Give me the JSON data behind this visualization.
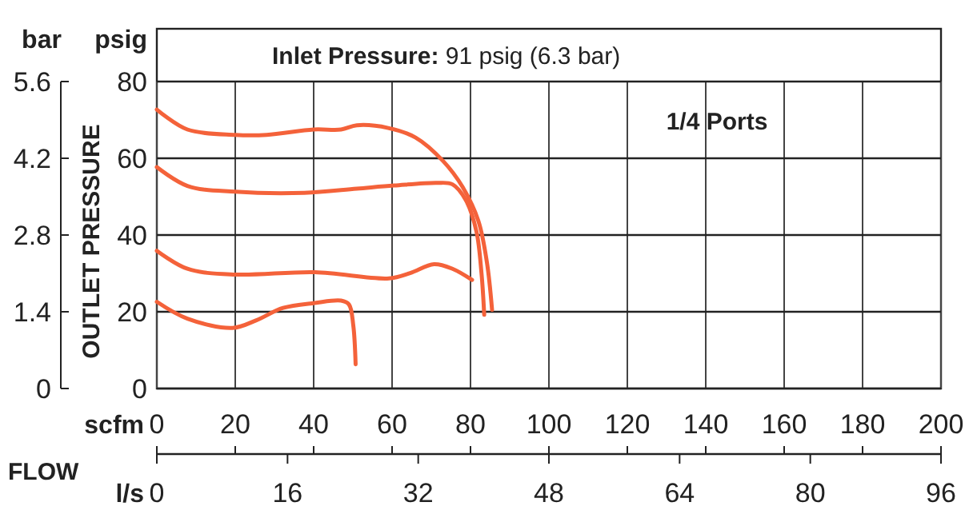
{
  "chart_data": {
    "type": "line",
    "title": "Inlet Pressure: 91 psig (6.3 bar)",
    "xlabel": "scfm",
    "ylabel": "psig",
    "y2label": "bar",
    "x2label": "l/s",
    "annotations": [
      "OUTLET PRESSURE",
      "FLOW",
      "1/4 Ports"
    ],
    "xlim": [
      0,
      200
    ],
    "xticks": [
      0,
      20,
      40,
      60,
      80,
      100,
      120,
      140,
      160,
      180,
      200
    ],
    "ylim": [
      0,
      80
    ],
    "yticks": [
      0,
      20,
      40,
      60,
      80
    ],
    "y2lim": [
      0,
      5.6
    ],
    "y2ticks": [
      0,
      1.4,
      2.8,
      4.2,
      5.6
    ],
    "x2lim": [
      0,
      96
    ],
    "x2ticks": [
      0,
      16,
      32,
      48,
      64,
      80,
      96
    ],
    "grid": true,
    "line_style": "solid",
    "marker": "none",
    "series": [
      {
        "color": "#f4623a",
        "x": [
          0,
          7.8,
          20,
          28,
          40,
          47,
          51,
          59,
          66,
          73,
          78,
          82,
          84.2,
          85.5
        ],
        "values": [
          72.7,
          67.5,
          66.1,
          66.1,
          67.5,
          67.5,
          68.6,
          67.9,
          65.4,
          59.3,
          52.5,
          43.7,
          32.8,
          20.5
        ]
      },
      {
        "color": "#f4623a",
        "x": [
          0,
          7.8,
          20,
          37.6,
          51,
          60.5,
          71.4,
          75.4,
          78.8,
          81.5,
          82.8,
          83.5
        ],
        "values": [
          57.7,
          52.8,
          51.3,
          51,
          52.1,
          52.9,
          53.6,
          53.2,
          49.1,
          41,
          30.1,
          19.2
        ]
      },
      {
        "color": "#f4623a",
        "x": [
          0,
          7.8,
          20,
          40.3,
          59.2,
          64.6,
          70.7,
          75.4,
          80.4
        ],
        "values": [
          35.9,
          31.2,
          29.7,
          30.3,
          28.7,
          30.1,
          32.4,
          31.2,
          28.3
        ]
      },
      {
        "color": "#f4623a",
        "x": [
          0,
          7.8,
          19.3,
          25.4,
          32.2,
          40.3,
          47,
          49,
          50.1,
          50.7
        ],
        "values": [
          22.6,
          18.2,
          15.8,
          17.8,
          21,
          22.3,
          22.9,
          21.9,
          16.5,
          6.3
        ]
      }
    ]
  }
}
